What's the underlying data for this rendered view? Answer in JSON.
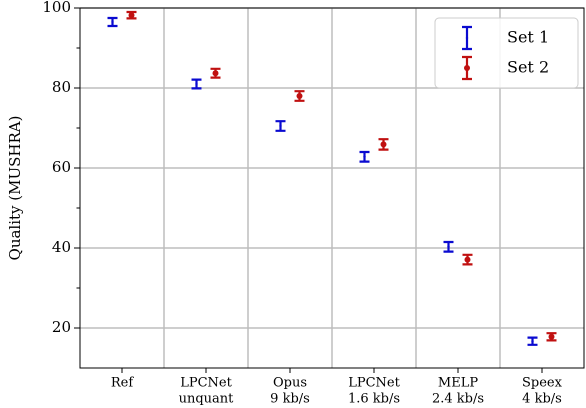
{
  "chart_data": {
    "type": "errorbar",
    "ylabel": "Quality (MUSHRA)",
    "categories": [
      [
        "Ref"
      ],
      [
        "LPCNet",
        "unquant"
      ],
      [
        "Opus",
        "9 kb/s"
      ],
      [
        "LPCNet",
        "1.6 kb/s"
      ],
      [
        "MELP",
        "2.4 kb/s"
      ],
      [
        "Speex",
        "4 kb/s"
      ]
    ],
    "series": [
      {
        "name": "Set 1",
        "color": "#0a0ad0",
        "marker": "none",
        "values": [
          96.5,
          81,
          70.5,
          62.8,
          40.3,
          16.7
        ],
        "errors": [
          1,
          1.1,
          1.2,
          1.2,
          1.2,
          0.9
        ]
      },
      {
        "name": "Set 2",
        "color": "#c01010",
        "marker": "dot",
        "values": [
          98.2,
          83.7,
          78,
          65.9,
          37.1,
          17.8
        ],
        "errors": [
          0.8,
          1.1,
          1.2,
          1.3,
          1.2,
          0.9
        ]
      }
    ],
    "ylim": [
      10,
      100
    ],
    "yticks": [
      20,
      40,
      60,
      80,
      100
    ],
    "yminorticks": [
      30,
      50,
      70,
      90
    ],
    "grid": true,
    "legend": "upper right"
  }
}
